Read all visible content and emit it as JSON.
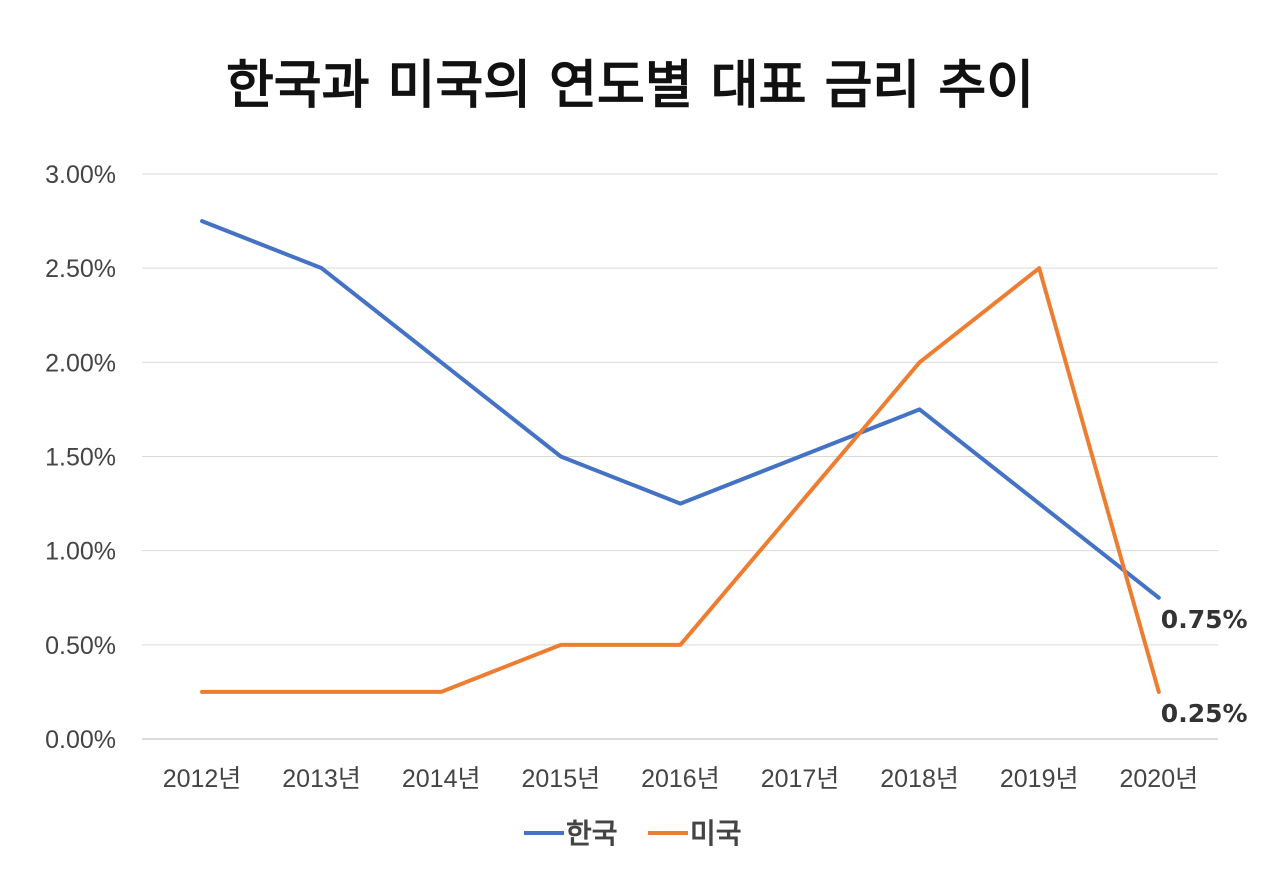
{
  "chart_data": {
    "type": "line",
    "title": "한국과 미국의 연도별 대표 금리 추이",
    "categories": [
      "2012년",
      "2013년",
      "2014년",
      "2015년",
      "2016년",
      "2017년",
      "2018년",
      "2019년",
      "2020년"
    ],
    "ylim": [
      0,
      3.0
    ],
    "yticks": [
      "0.00%",
      "0.50%",
      "1.00%",
      "1.50%",
      "2.00%",
      "2.50%",
      "3.00%"
    ],
    "ytick_values": [
      0,
      0.5,
      1.0,
      1.5,
      2.0,
      2.5,
      3.0
    ],
    "grid": true,
    "legend_position": "bottom",
    "series": [
      {
        "name": "한국",
        "color": "#4472C4",
        "values": [
          2.75,
          2.5,
          2.0,
          1.5,
          1.25,
          1.5,
          1.75,
          1.25,
          0.75
        ],
        "end_label": "0.75%"
      },
      {
        "name": "미국",
        "color": "#ED7D31",
        "values": [
          0.25,
          0.25,
          0.25,
          0.5,
          0.5,
          1.25,
          2.0,
          2.5,
          0.25
        ],
        "end_label": "0.25%"
      }
    ]
  }
}
